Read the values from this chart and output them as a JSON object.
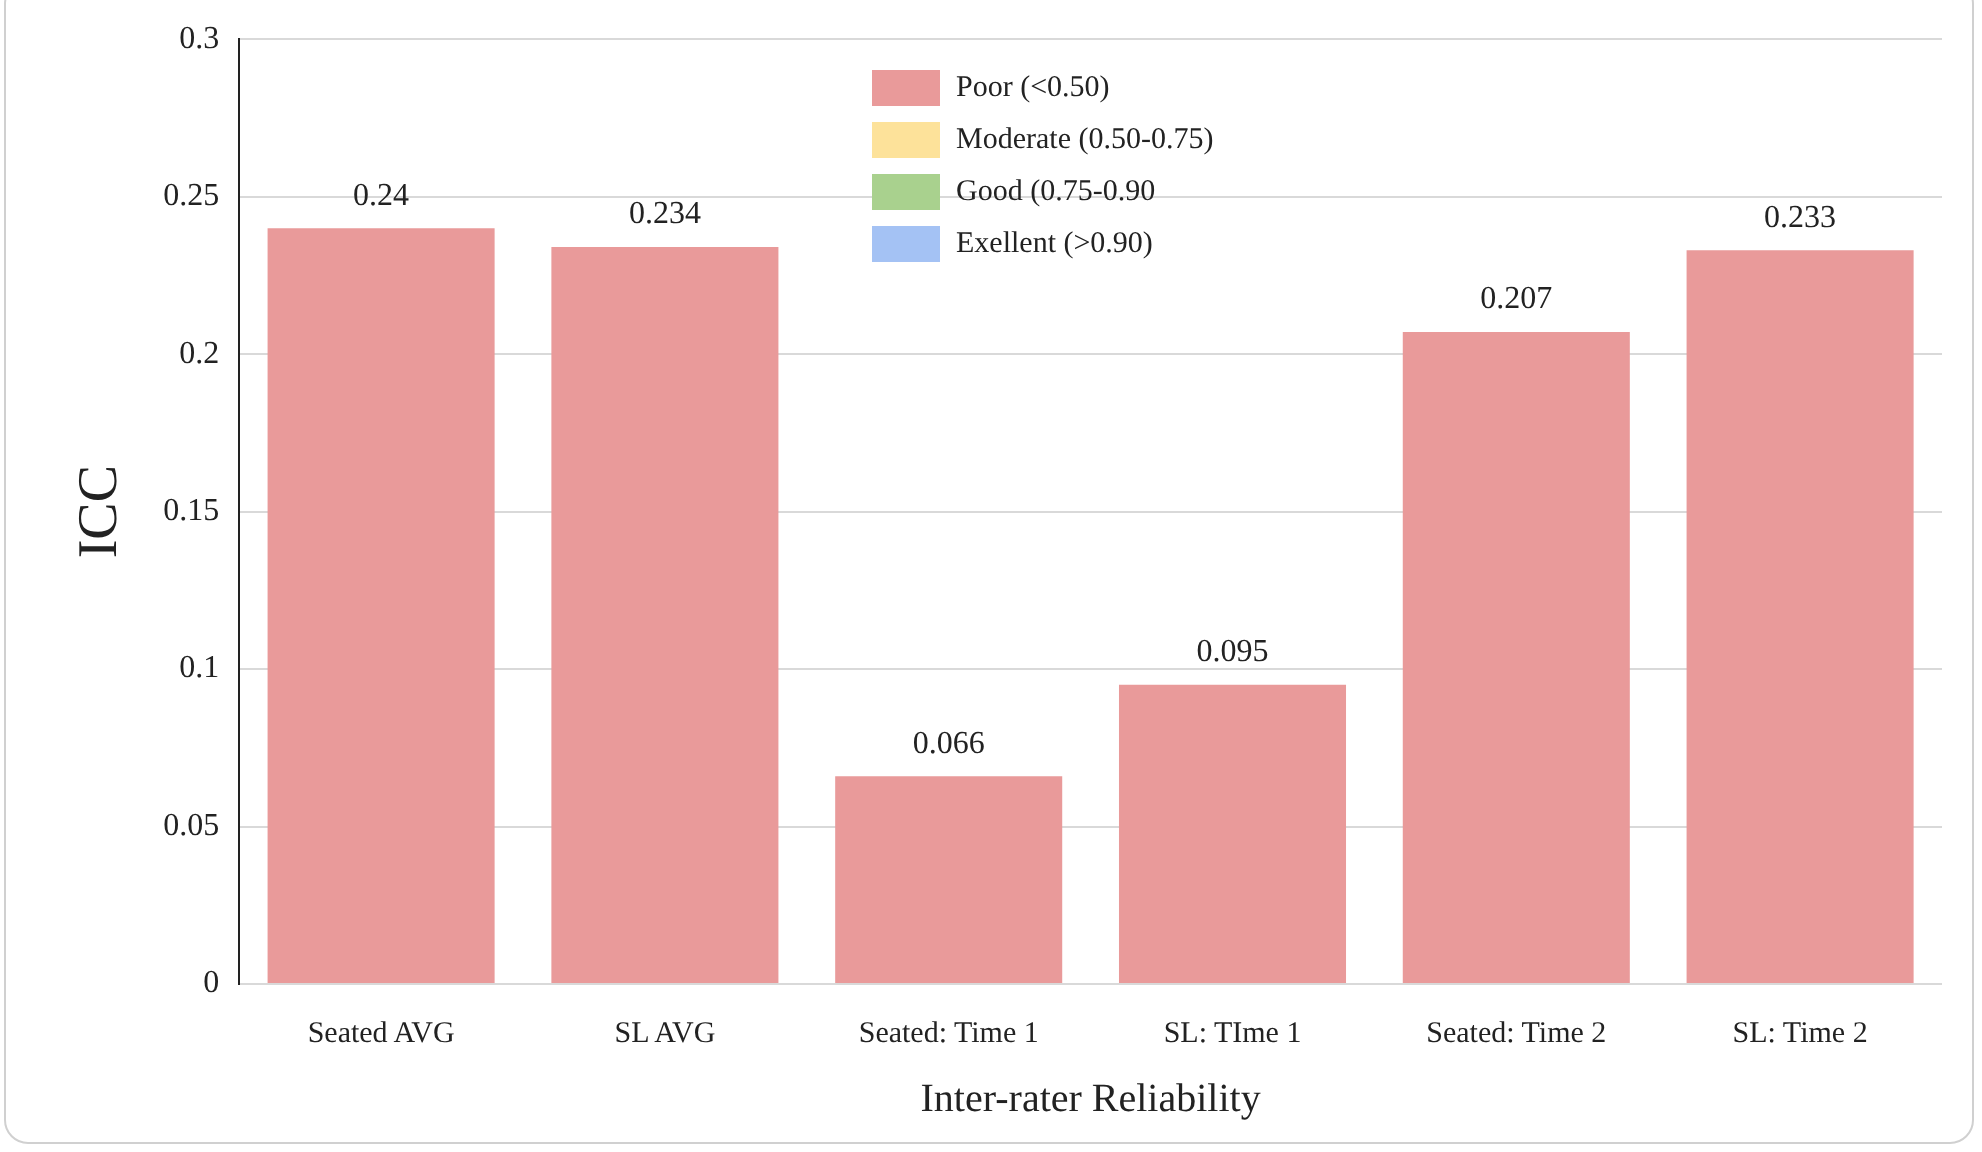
{
  "chart_data": {
    "type": "bar",
    "xlabel": "Inter-rater Reliability",
    "ylabel": "ICC",
    "categories": [
      "Seated AVG",
      "SL AVG",
      "Seated: Time 1",
      "SL: TIme 1",
      "Seated: Time 2",
      "SL: Time 2"
    ],
    "series": [
      {
        "name": "Poor (<0.50)",
        "color": "#e99a9a",
        "values": [
          0.24,
          0.234,
          0.066,
          0.095,
          0.207,
          0.233
        ]
      },
      {
        "name": "Moderate (0.50-0.75)",
        "color": "#fde29a",
        "values": [
          null,
          null,
          null,
          null,
          null,
          null
        ]
      },
      {
        "name": "Good (0.75-0.90",
        "color": "#a9d18e",
        "values": [
          null,
          null,
          null,
          null,
          null,
          null
        ]
      },
      {
        "name": "Exellent (>0.90)",
        "color": "#a4c2f4",
        "values": [
          null,
          null,
          null,
          null,
          null,
          null
        ]
      }
    ],
    "ylim": [
      0,
      0.3
    ],
    "yticks": [
      0,
      0.05,
      0.1,
      0.15,
      0.2,
      0.25,
      0.3
    ],
    "grid": "y",
    "legend": "top",
    "data_labels": true
  }
}
